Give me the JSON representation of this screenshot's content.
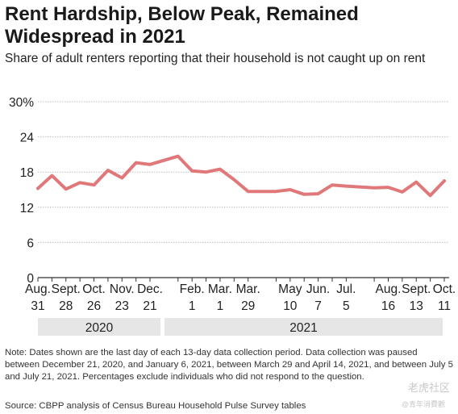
{
  "title": "Rent Hardship, Below Peak, Remained Widespread in 2021",
  "subtitle": "Share of adult renters reporting that their household is not caught up on rent",
  "note": "Note: Dates shown are the last day of each 13-day data collection period. Data collection was paused between December 21, 2020, and January 6, 2021, between March 29 and April 14, 2021, and between July 5 and July 21, 2021. Percentages exclude individuals who did not respond to the question.",
  "source": "Source: CBPP analysis of Census Bureau Household Pulse Survey tables",
  "watermark": "老虎社区",
  "watermark_sub": "@青年消費觀",
  "colors": {
    "line": "#e0787a",
    "grid": "#bdbdbd",
    "year_band": "#e6e6e6"
  },
  "chart_data": {
    "type": "line",
    "title": "Rent Hardship, Below Peak, Remained Widespread in 2021",
    "subtitle": "Share of adult renters reporting that their household is not caught up on rent",
    "xlabel": "",
    "ylabel": "",
    "ylim": [
      0,
      30
    ],
    "y_ticks": [
      "0",
      "6",
      "12",
      "18",
      "24",
      "30%"
    ],
    "y_tick_values": [
      0,
      6,
      12,
      18,
      24,
      30
    ],
    "grid": "horizontal",
    "x_ticks": [
      {
        "month": "Aug.",
        "day": "31",
        "year": "2020"
      },
      {
        "month": "Sept.",
        "day": "28",
        "year": "2020"
      },
      {
        "month": "Oct.",
        "day": "26",
        "year": "2020"
      },
      {
        "month": "Nov.",
        "day": "23",
        "year": "2020"
      },
      {
        "month": "Dec.",
        "day": "21",
        "year": "2020"
      },
      {
        "month": "Feb.",
        "day": "1",
        "year": "2021"
      },
      {
        "month": "Mar.",
        "day": "1",
        "year": "2021"
      },
      {
        "month": "Mar.",
        "day": "29",
        "year": "2021"
      },
      {
        "month": "May",
        "day": "10",
        "year": "2021"
      },
      {
        "month": "Jun.",
        "day": "7",
        "year": "2021"
      },
      {
        "month": "Jul.",
        "day": "5",
        "year": "2021"
      },
      {
        "month": "Aug.",
        "day": "16",
        "year": "2021"
      },
      {
        "month": "Sept.",
        "day": "13",
        "year": "2021"
      },
      {
        "month": "Oct.",
        "day": "11",
        "year": "2021"
      }
    ],
    "years": [
      "2020",
      "2021"
    ],
    "series": [
      {
        "values": [
          {
            "x": "2020-08-31",
            "y": 15.2
          },
          {
            "x": "2020-09-14",
            "y": 17.4
          },
          {
            "x": "2020-09-28",
            "y": 15.1
          },
          {
            "x": "2020-10-12",
            "y": 16.2
          },
          {
            "x": "2020-10-26",
            "y": 15.8
          },
          {
            "x": "2020-11-09",
            "y": 18.3
          },
          {
            "x": "2020-11-23",
            "y": 17.0
          },
          {
            "x": "2020-12-07",
            "y": 19.6
          },
          {
            "x": "2020-12-21",
            "y": 19.3
          },
          {
            "x": "2021-01-18",
            "y": 20.7
          },
          {
            "x": "2021-02-01",
            "y": 18.2
          },
          {
            "x": "2021-02-15",
            "y": 18.0
          },
          {
            "x": "2021-03-01",
            "y": 18.5
          },
          {
            "x": "2021-03-15",
            "y": 16.7
          },
          {
            "x": "2021-03-29",
            "y": 14.7
          },
          {
            "x": "2021-04-26",
            "y": 14.7
          },
          {
            "x": "2021-05-10",
            "y": 15.0
          },
          {
            "x": "2021-05-24",
            "y": 14.2
          },
          {
            "x": "2021-06-07",
            "y": 14.3
          },
          {
            "x": "2021-06-21",
            "y": 15.8
          },
          {
            "x": "2021-07-05",
            "y": 15.6
          },
          {
            "x": "2021-08-02",
            "y": 15.3
          },
          {
            "x": "2021-08-16",
            "y": 15.4
          },
          {
            "x": "2021-08-30",
            "y": 14.6
          },
          {
            "x": "2021-09-13",
            "y": 16.3
          },
          {
            "x": "2021-09-27",
            "y": 14.0
          },
          {
            "x": "2021-10-11",
            "y": 16.5
          }
        ]
      }
    ]
  }
}
